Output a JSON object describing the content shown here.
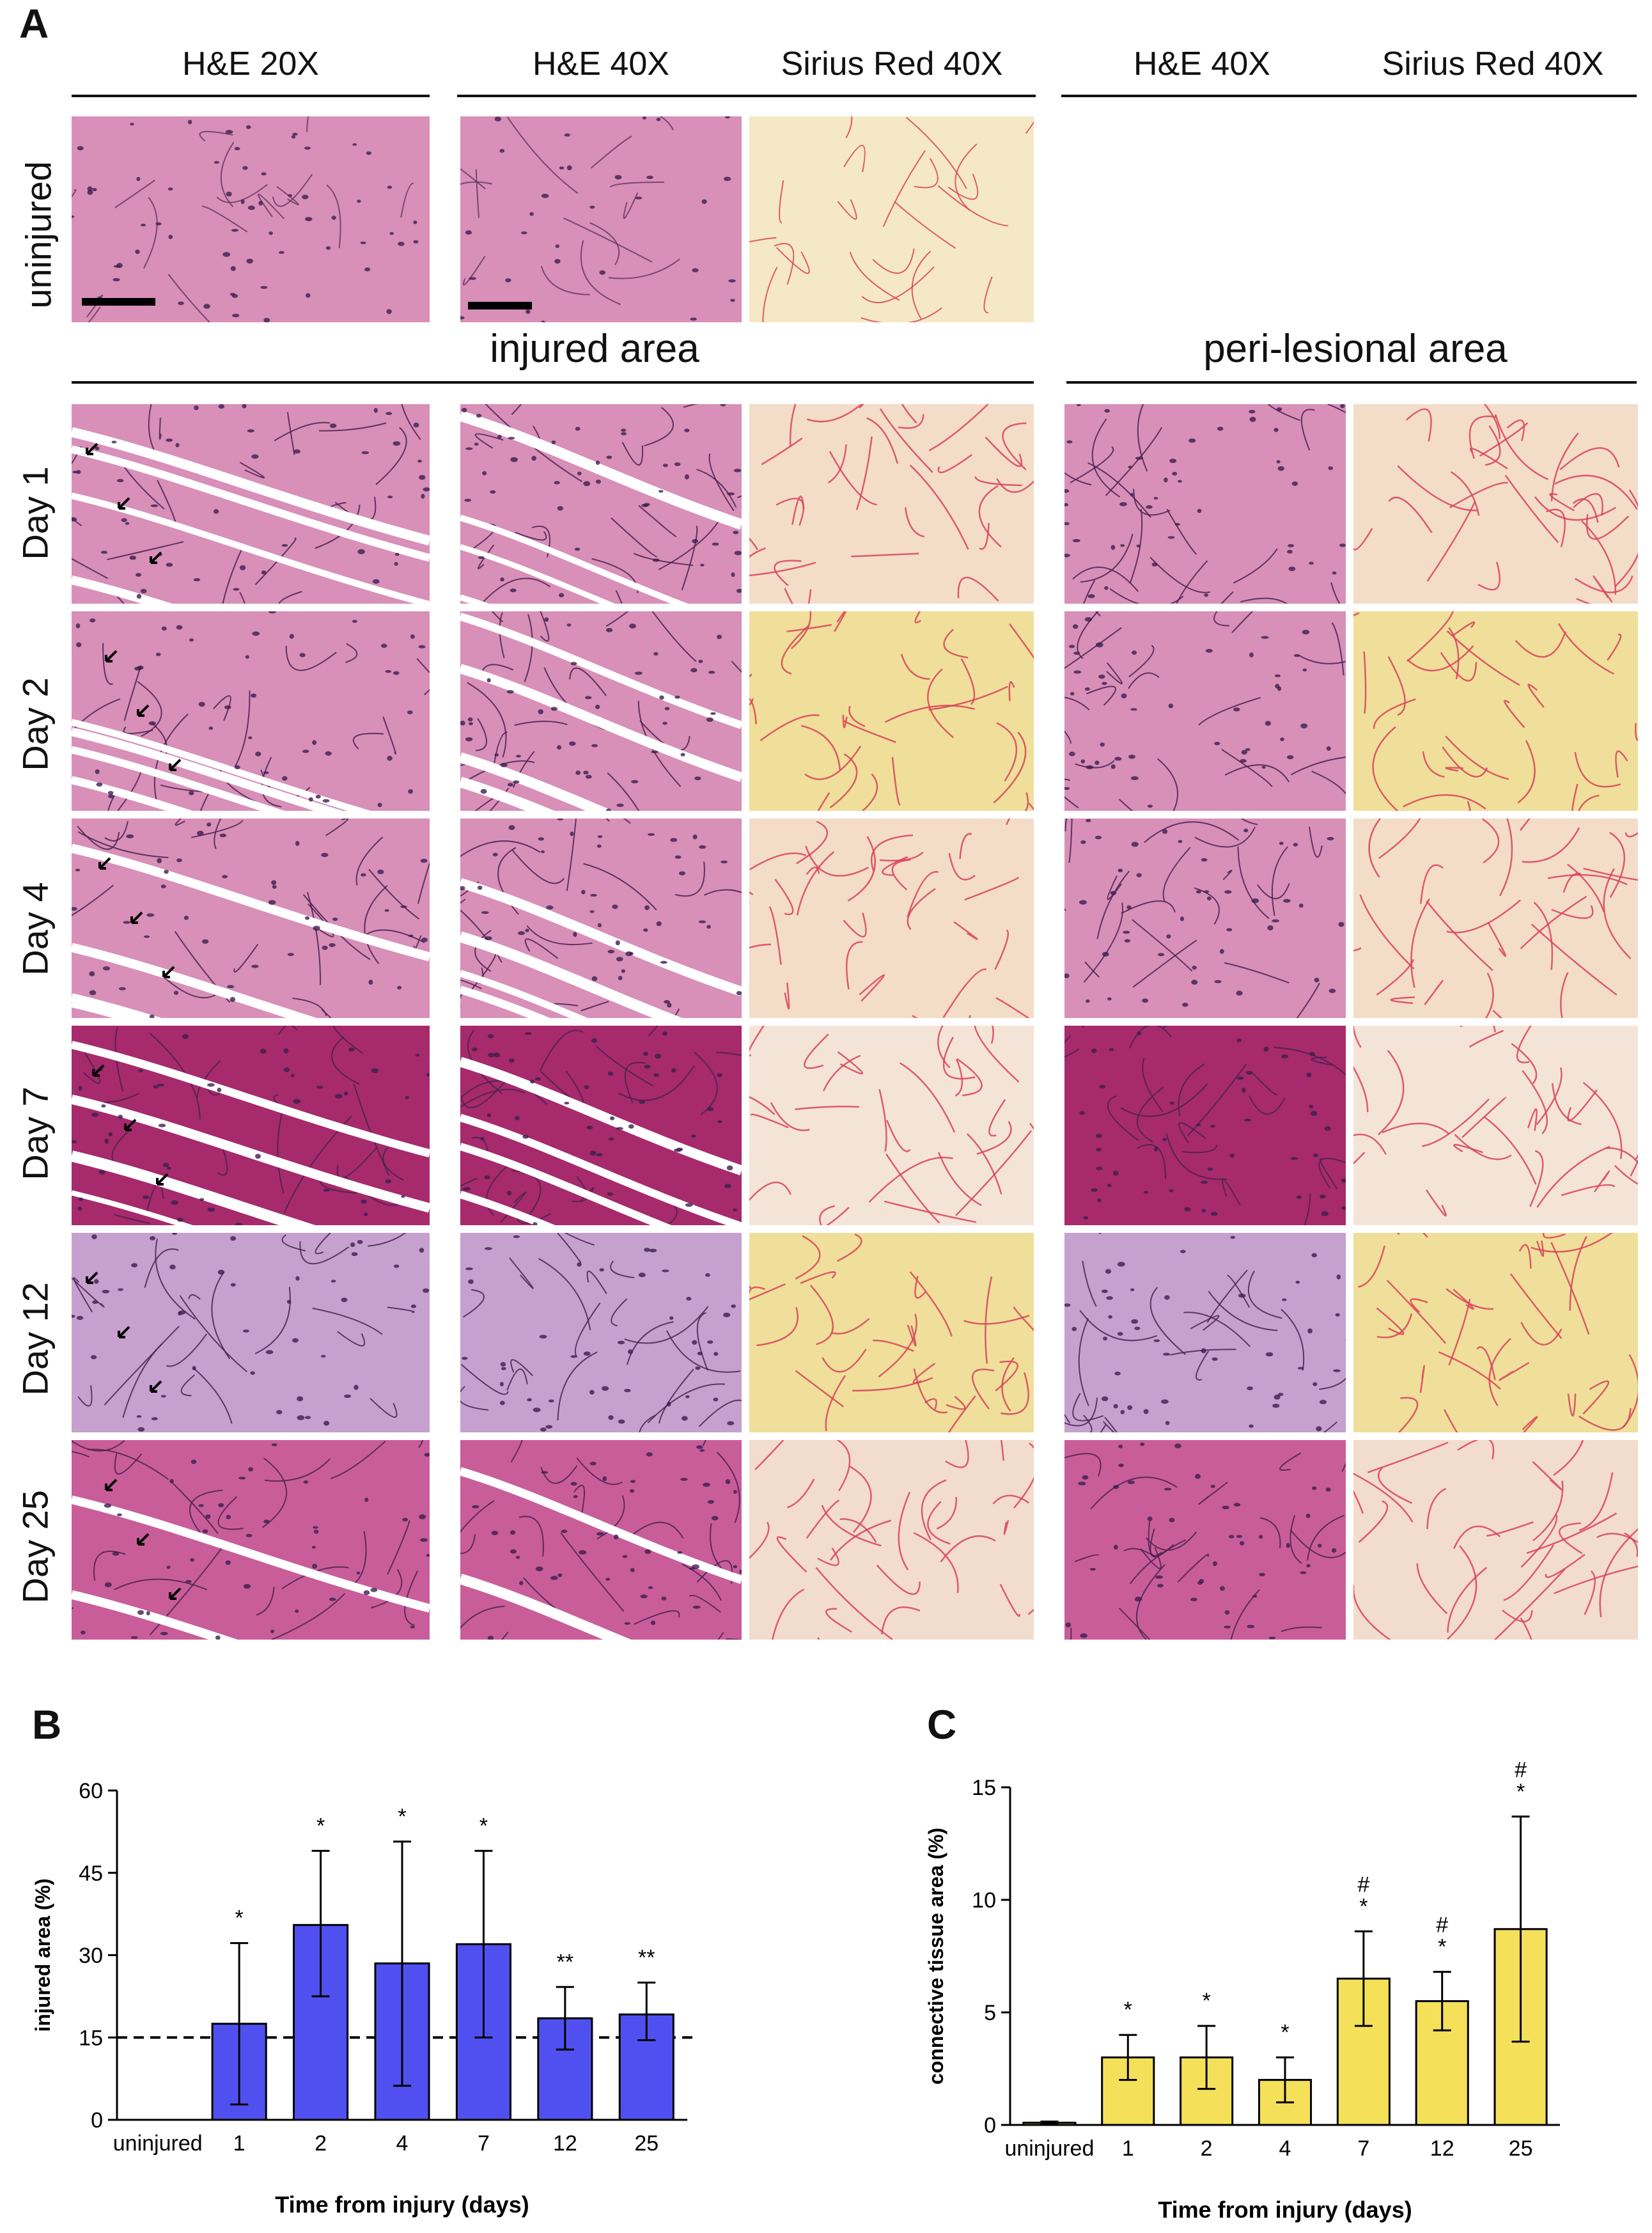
{
  "panelA": {
    "letter": "A",
    "column_headers": [
      "H&E 20X",
      "H&E 40X",
      "Sirius Red 40X",
      "H&E 40X",
      "Sirius Red 40X"
    ],
    "uninjured_label": "uninjured",
    "section_injured": "injured area",
    "section_perilesional": "peri-lesional area",
    "rows": [
      "Day 1",
      "Day 2",
      "Day 4",
      "Day 7",
      "Day 12",
      "Day 25"
    ],
    "stain_colors": {
      "he_light": "#d88fb8",
      "he_dark": "#a62a6c",
      "he_day12": "#c6a0cf",
      "sirius_pale": "#f3ddc8",
      "sirius_yellow": "#efdf9a",
      "sirius_fiber": "#d9435a"
    }
  },
  "panelB": {
    "letter": "B",
    "chart_data": {
      "type": "bar",
      "categories": [
        "uninjured",
        "1",
        "2",
        "4",
        "7",
        "12",
        "25"
      ],
      "values": [
        0,
        17.5,
        35.5,
        28.5,
        32,
        18.5,
        19.2
      ],
      "error_upper": [
        0,
        32.2,
        49,
        50.7,
        49,
        24.2,
        25
      ],
      "error_lower": [
        0,
        2.8,
        22.5,
        6.2,
        15,
        12.8,
        14.5
      ],
      "significance": [
        "",
        "*",
        "*",
        "*",
        "*",
        "**",
        "**"
      ],
      "reference_line": 15,
      "xlabel": "Time from injury (days)",
      "ylabel": "injured area (%)",
      "ylim": [
        0,
        60
      ],
      "yticks": [
        0,
        15,
        30,
        45,
        60
      ],
      "bar_color": "#5050f0"
    }
  },
  "panelC": {
    "letter": "C",
    "chart_data": {
      "type": "bar",
      "categories": [
        "uninjured",
        "1",
        "2",
        "4",
        "7",
        "12",
        "25"
      ],
      "values": [
        0.1,
        3.0,
        3.0,
        2.0,
        6.5,
        5.5,
        8.7
      ],
      "error_upper": [
        0.15,
        4.0,
        4.4,
        3.0,
        8.6,
        6.8,
        13.7
      ],
      "error_lower": [
        0.05,
        2.0,
        1.6,
        1.0,
        4.4,
        4.2,
        3.7
      ],
      "significance": [
        "",
        "*",
        "*",
        "*",
        "#\n*",
        "#\n*",
        "#\n*"
      ],
      "xlabel": "Time from injury (days)",
      "ylabel": "connective tissue area (%)",
      "ylim": [
        0,
        15
      ],
      "yticks": [
        0,
        5,
        10,
        15
      ],
      "bar_color": "#f5e05a"
    }
  }
}
